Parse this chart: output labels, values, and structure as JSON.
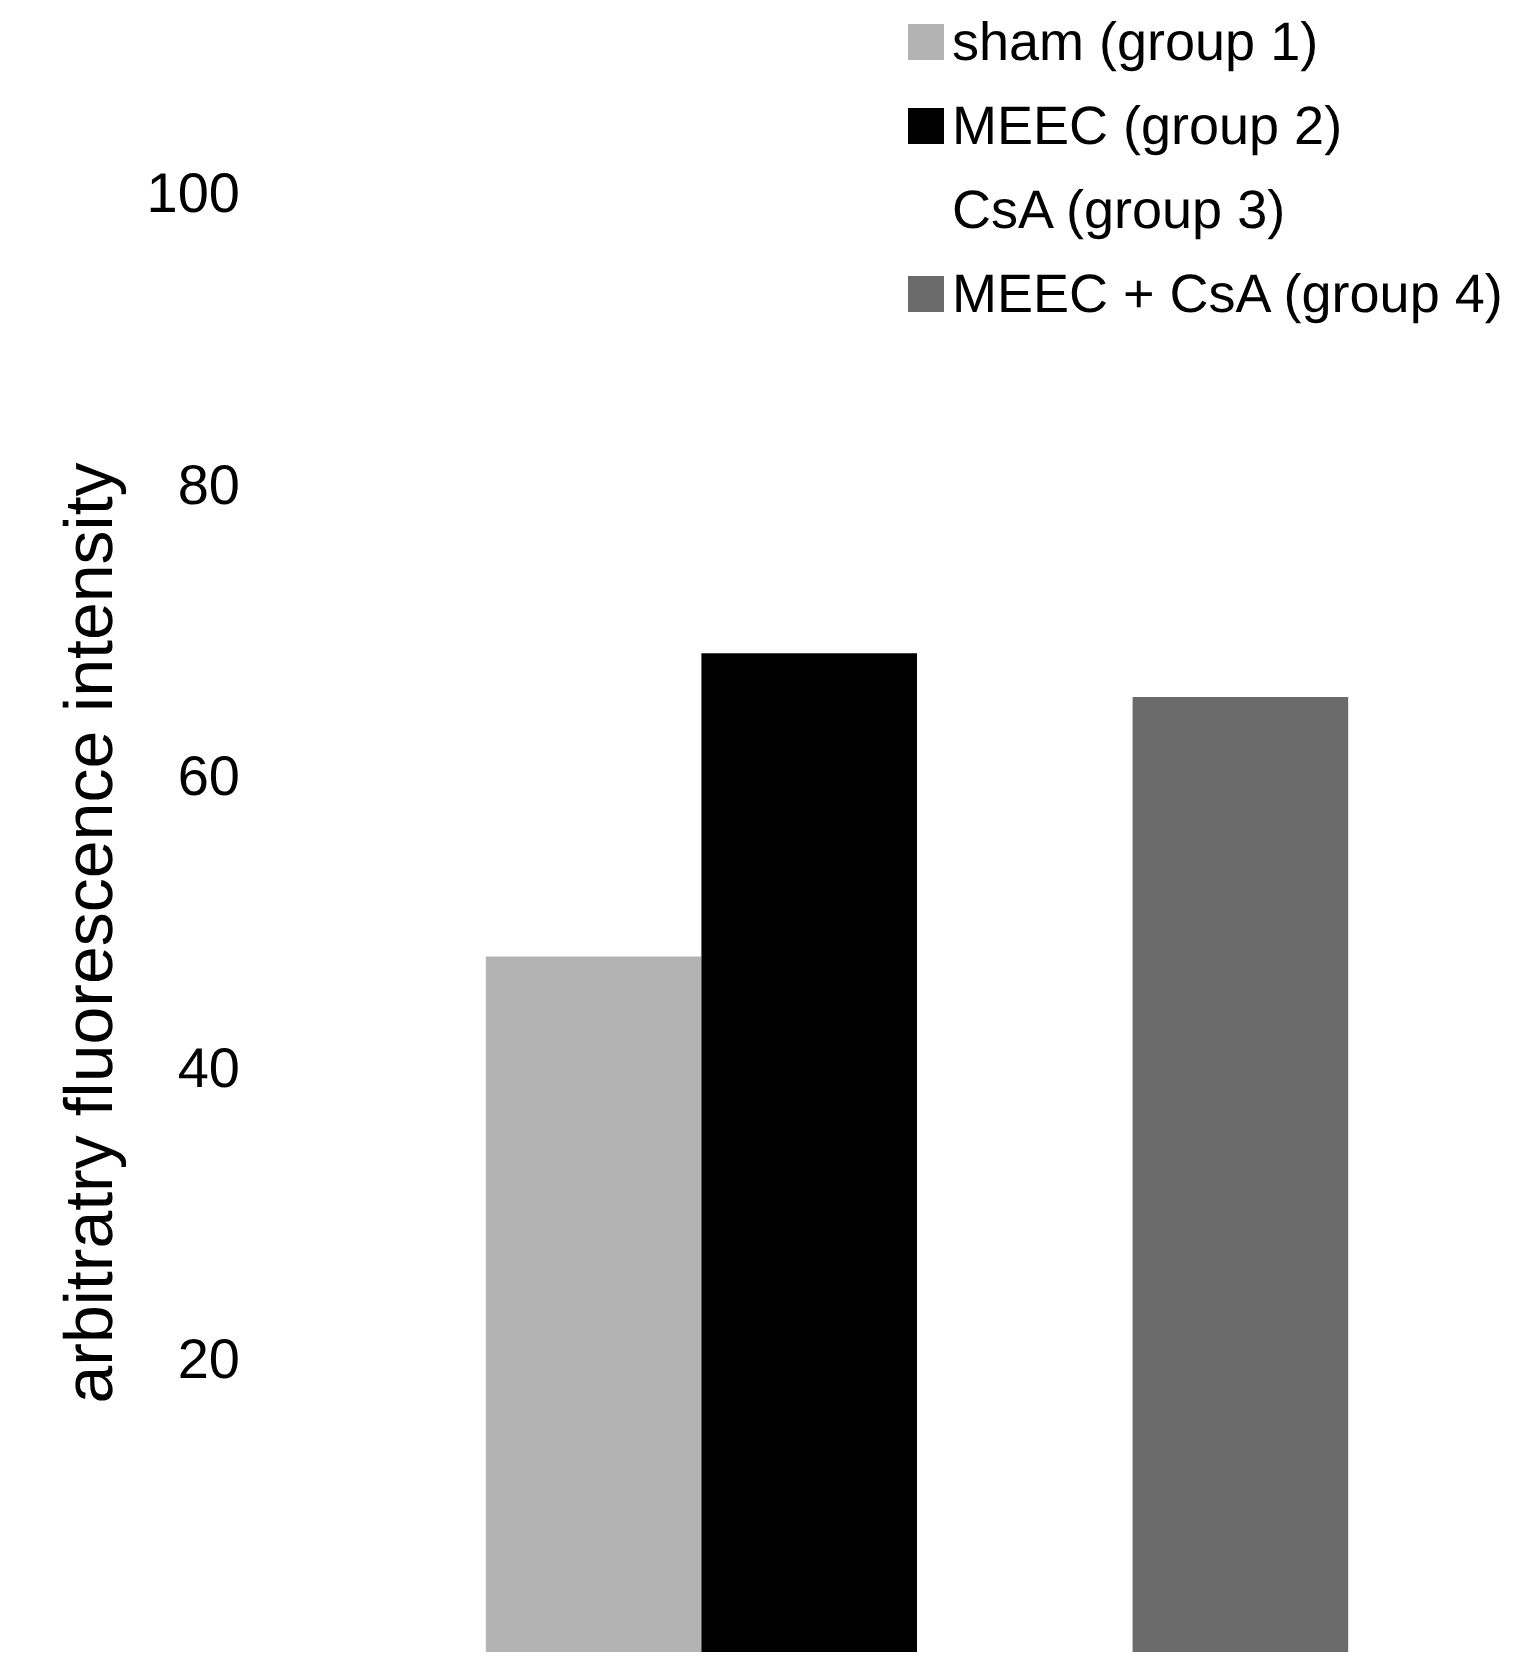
{
  "chart_data": {
    "type": "bar",
    "ylabel": "arbitratry fluorescence intensity",
    "categories": [
      null
    ],
    "series": [
      {
        "name": "sham (group 1)",
        "color": "#b3b3b3",
        "values": [
          47.7
        ]
      },
      {
        "name": "MEEC (group 2)",
        "color": "#000000",
        "values": [
          68.5
        ]
      },
      {
        "name": "CsA (group 3)",
        "values": [
          null
        ]
      },
      {
        "name": "MEEC + CsA (group 4)",
        "color": "#6b6b6b",
        "values": [
          65.5
        ]
      }
    ],
    "ylim": [
      0,
      100
    ],
    "yticks": [
      20,
      40,
      60,
      80,
      100
    ],
    "grid": false,
    "legend": "top right"
  }
}
